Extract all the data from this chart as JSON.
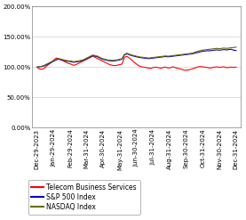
{
  "x_labels": [
    "Dec-29-2023",
    "Jan-29-2024",
    "Feb-29-2024",
    "Mar-31-2024",
    "Apr-30-2024",
    "May-31-2024",
    "Jun-30-2024",
    "Jul-31-2024",
    "Aug-31-2024",
    "Sep-30-2024",
    "Oct-31-2024",
    "Nov-30-2024",
    "Dec-31-2024"
  ],
  "telecom": [
    100.0,
    97.0,
    96.5,
    98.0,
    102.0,
    105.0,
    108.0,
    112.0,
    115.0,
    114.0,
    112.0,
    110.0,
    108.0,
    106.0,
    105.0,
    103.0,
    104.0,
    106.0,
    108.0,
    110.0,
    112.0,
    114.0,
    116.0,
    118.0,
    116.0,
    114.0,
    112.0,
    110.0,
    108.0,
    106.0,
    104.0,
    103.0,
    102.5,
    103.0,
    104.0,
    105.0,
    116.0,
    118.0,
    115.0,
    112.0,
    108.0,
    105.0,
    102.0,
    100.5,
    100.0,
    99.0,
    98.5,
    98.0,
    99.5,
    100.0,
    99.0,
    98.0,
    99.5,
    100.0,
    98.5,
    99.0,
    100.5,
    99.0,
    98.0,
    97.0,
    96.0,
    94.5,
    95.0,
    96.0,
    97.0,
    98.5,
    100.0,
    101.0,
    100.5,
    100.0,
    99.5,
    98.5,
    99.0,
    100.0,
    100.5,
    99.5,
    100.0,
    100.5,
    99.0,
    99.5,
    100.0,
    99.5,
    100.0
  ],
  "sp500": [
    100.0,
    100.5,
    101.0,
    102.0,
    104.0,
    106.0,
    108.0,
    110.0,
    112.0,
    113.0,
    112.0,
    111.0,
    110.0,
    109.5,
    109.0,
    108.0,
    108.5,
    109.0,
    110.0,
    111.0,
    113.0,
    115.0,
    117.0,
    119.0,
    118.0,
    117.0,
    115.0,
    113.0,
    112.0,
    111.0,
    110.5,
    110.0,
    110.5,
    111.0,
    112.0,
    113.0,
    120.0,
    122.0,
    120.5,
    119.0,
    118.0,
    117.0,
    116.0,
    115.5,
    115.0,
    114.5,
    114.0,
    114.5,
    115.0,
    115.5,
    116.0,
    116.5,
    117.0,
    117.5,
    117.0,
    117.5,
    118.0,
    118.5,
    119.0,
    119.5,
    120.0,
    120.5,
    121.0,
    121.5,
    122.0,
    123.0,
    124.0,
    125.0,
    126.0,
    126.5,
    127.0,
    127.0,
    127.5,
    128.0,
    128.5,
    128.0,
    128.5,
    129.0,
    128.5,
    129.0,
    129.5,
    128.0,
    127.5
  ],
  "nasdaq": [
    100.0,
    100.5,
    101.5,
    103.0,
    105.0,
    107.0,
    109.0,
    111.0,
    113.0,
    114.0,
    113.0,
    112.0,
    111.0,
    110.5,
    110.0,
    109.0,
    109.5,
    110.0,
    111.0,
    112.0,
    114.0,
    116.0,
    118.0,
    120.0,
    119.0,
    118.0,
    116.0,
    114.0,
    113.0,
    112.0,
    111.5,
    111.0,
    111.5,
    112.0,
    113.0,
    114.0,
    121.0,
    123.0,
    121.5,
    120.0,
    119.0,
    118.0,
    117.0,
    116.5,
    116.0,
    115.5,
    115.0,
    115.5,
    116.0,
    116.5,
    117.0,
    117.5,
    118.0,
    118.5,
    118.0,
    118.5,
    119.0,
    119.5,
    120.0,
    120.5,
    121.0,
    121.5,
    122.0,
    122.5,
    123.0,
    124.5,
    126.0,
    127.0,
    128.0,
    128.5,
    129.0,
    129.5,
    130.0,
    130.5,
    131.0,
    130.5,
    131.0,
    131.5,
    131.0,
    131.5,
    132.0,
    132.5,
    133.0
  ],
  "telecom_color": "#FF0000",
  "sp500_color": "#0000CC",
  "nasdaq_color": "#6B6B00",
  "ylim": [
    0,
    200
  ],
  "yticks": [
    0,
    50,
    100,
    150,
    200
  ],
  "yticklabels": [
    "0.00%",
    "50.00%",
    "100.00%",
    "150.00%",
    "200.00%"
  ],
  "legend_labels": [
    "Telecom Business Services",
    "S&P 500 Index",
    "NASDAQ Index"
  ],
  "background_color": "#FFFFFF",
  "border_color": "#000000",
  "grid_color": "#D0D0D0",
  "line_width": 0.8,
  "tick_fontsize": 5.0,
  "legend_fontsize": 5.5
}
